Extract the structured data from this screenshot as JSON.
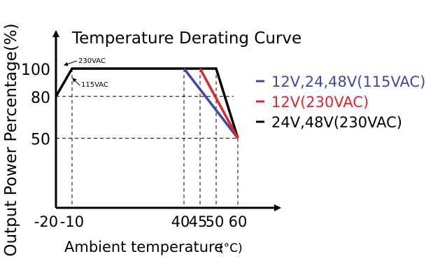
{
  "chart_data": {
    "type": "line",
    "title": "Temperature Derating Curve",
    "xlabel": "Ambient temperature",
    "xlabel_unit": "(°C)",
    "ylabel": "Output Power Percentage(%)",
    "xlim": [
      -20,
      60
    ],
    "ylim": [
      0,
      100
    ],
    "x_ticks": [
      "-20",
      "-10",
      "40",
      "45",
      "50",
      "60"
    ],
    "y_ticks": [
      "100",
      "80",
      "50"
    ],
    "grid": false,
    "legend_position": "right",
    "series": [
      {
        "name": "12V,24,48V(115VAC)",
        "color": "#3b4aa6",
        "x": [
          40,
          60
        ],
        "y": [
          100,
          50
        ]
      },
      {
        "name": "12V(230VAC)",
        "color": "#e0262b",
        "x": [
          45,
          60
        ],
        "y": [
          100,
          50
        ]
      },
      {
        "name": "24V,48V(230VAC)",
        "color": "#000000",
        "x": [
          -20,
          -10,
          50,
          60
        ],
        "y": [
          80,
          100,
          100,
          50
        ]
      }
    ],
    "annotations": [
      {
        "text": "230VAC",
        "x": -15,
        "y": 100
      },
      {
        "text": "115VAC",
        "x": -13,
        "y": 94
      }
    ]
  }
}
